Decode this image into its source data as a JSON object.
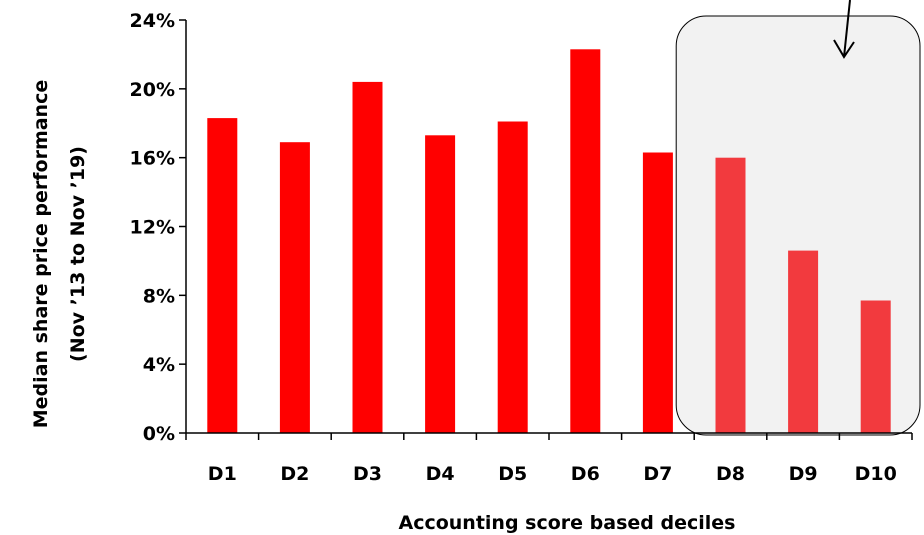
{
  "chart_data": {
    "type": "bar",
    "categories": [
      "D1",
      "D2",
      "D3",
      "D4",
      "D5",
      "D6",
      "D7",
      "D8",
      "D9",
      "D10"
    ],
    "values": [
      18.3,
      16.9,
      20.4,
      17.3,
      18.1,
      22.3,
      16.3,
      16.0,
      10.6,
      7.7
    ],
    "xlabel": "Accounting score based deciles",
    "ylabel_line1": "Median share price performance",
    "ylabel_line2": "(Nov ’13 to Nov ’19)",
    "ylim": [
      0,
      24
    ],
    "yticks": [
      "0%",
      "4%",
      "8%",
      "12%",
      "16%",
      "20%",
      "24%"
    ],
    "grid": false,
    "highlighted_categories": [
      "D8",
      "D9",
      "D10"
    ],
    "colors": {
      "bar": "#ff0000",
      "bar_highlighted": "#f23a3e",
      "highlight_box_fill": "#f2f2f2",
      "highlight_box_stroke": "#000000",
      "axis": "#000000"
    },
    "annotation_arrow_icon": "arrow-down-icon"
  }
}
